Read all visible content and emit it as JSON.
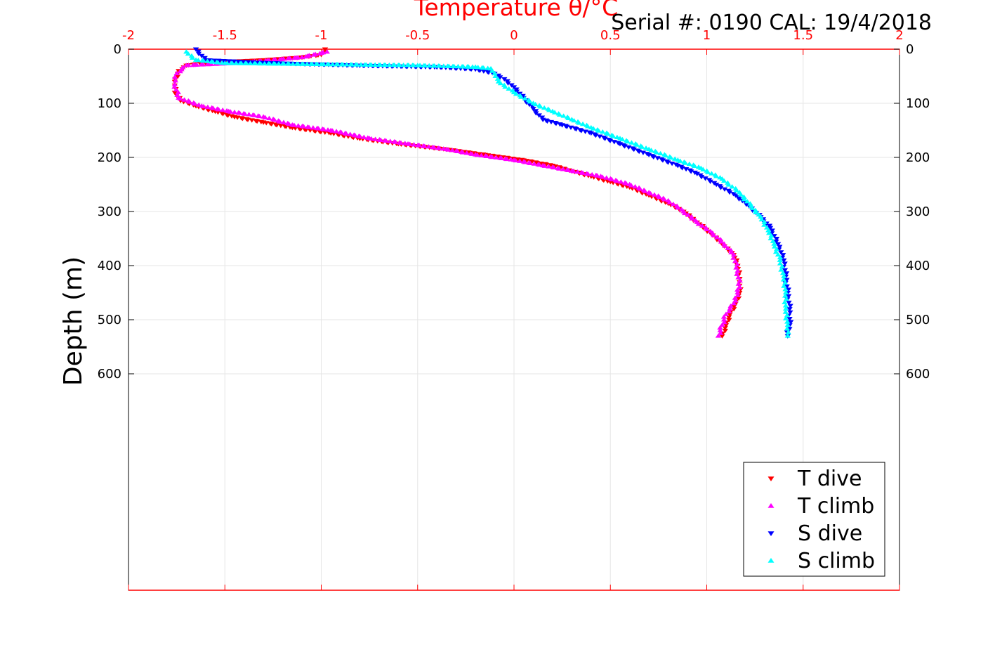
{
  "chart_data": {
    "type": "scatter",
    "title": "Temperature θ/°C",
    "annotation": "Serial #: 0190  CAL: 19/4/2018",
    "ylabel": "Depth (m)",
    "xlim": [
      -2,
      2
    ],
    "ylim": [
      0,
      1000
    ],
    "y_reversed": true,
    "x_ticks": [
      "-2",
      "-1.5",
      "-1",
      "-0.5",
      "0",
      "0.5",
      "1",
      "1.5",
      "2"
    ],
    "y_ticks": [
      "0",
      "100",
      "200",
      "300",
      "400",
      "500",
      "600"
    ],
    "grid": true,
    "legend_position": "bottom-right",
    "colors": {
      "axis_top": "#ff0000",
      "grid": "#e6e6e6"
    },
    "series": [
      {
        "name": "T dive",
        "marker": "triangle-down",
        "color": "#ff0000",
        "points": [
          [
            -0.98,
            0
          ],
          [
            -0.98,
            5
          ],
          [
            -1.0,
            10
          ],
          [
            -1.1,
            15
          ],
          [
            -1.3,
            20
          ],
          [
            -1.6,
            25
          ],
          [
            -1.7,
            30
          ],
          [
            -1.74,
            40
          ],
          [
            -1.76,
            60
          ],
          [
            -1.76,
            80
          ],
          [
            -1.73,
            95
          ],
          [
            -1.65,
            105
          ],
          [
            -1.55,
            115
          ],
          [
            -1.45,
            125
          ],
          [
            -1.3,
            135
          ],
          [
            -1.15,
            145
          ],
          [
            -0.95,
            155
          ],
          [
            -0.8,
            165
          ],
          [
            -0.6,
            175
          ],
          [
            -0.35,
            185
          ],
          [
            -0.15,
            195
          ],
          [
            0.05,
            205
          ],
          [
            0.2,
            215
          ],
          [
            0.3,
            225
          ],
          [
            0.4,
            235
          ],
          [
            0.5,
            245
          ],
          [
            0.6,
            255
          ],
          [
            0.7,
            270
          ],
          [
            0.8,
            285
          ],
          [
            0.88,
            300
          ],
          [
            0.95,
            320
          ],
          [
            1.02,
            340
          ],
          [
            1.08,
            360
          ],
          [
            1.14,
            380
          ],
          [
            1.16,
            400
          ],
          [
            1.17,
            430
          ],
          [
            1.17,
            450
          ],
          [
            1.15,
            470
          ],
          [
            1.12,
            490
          ],
          [
            1.1,
            510
          ],
          [
            1.08,
            530
          ]
        ]
      },
      {
        "name": "T climb",
        "marker": "triangle-up",
        "color": "#ff00ff",
        "points": [
          [
            -0.97,
            5
          ],
          [
            -1.1,
            15
          ],
          [
            -1.4,
            25
          ],
          [
            -1.7,
            30
          ],
          [
            -1.75,
            45
          ],
          [
            -1.76,
            65
          ],
          [
            -1.74,
            90
          ],
          [
            -1.62,
            105
          ],
          [
            -1.48,
            115
          ],
          [
            -1.3,
            125
          ],
          [
            -1.15,
            140
          ],
          [
            -0.95,
            150
          ],
          [
            -0.75,
            165
          ],
          [
            -0.55,
            175
          ],
          [
            -0.35,
            185
          ],
          [
            -0.2,
            195
          ],
          [
            0.0,
            205
          ],
          [
            0.15,
            215
          ],
          [
            0.3,
            225
          ],
          [
            0.45,
            235
          ],
          [
            0.6,
            250
          ],
          [
            0.7,
            265
          ],
          [
            0.8,
            280
          ],
          [
            0.88,
            300
          ],
          [
            0.95,
            320
          ],
          [
            1.03,
            340
          ],
          [
            1.09,
            360
          ],
          [
            1.14,
            380
          ],
          [
            1.16,
            410
          ],
          [
            1.17,
            440
          ],
          [
            1.14,
            470
          ],
          [
            1.1,
            490
          ],
          [
            1.08,
            510
          ],
          [
            1.06,
            530
          ]
        ]
      },
      {
        "name": "S dive",
        "marker": "triangle-down",
        "color": "#0000ff",
        "points": [
          [
            -1.65,
            0
          ],
          [
            -1.6,
            20
          ],
          [
            -1.3,
            25
          ],
          [
            -0.8,
            30
          ],
          [
            -0.4,
            33
          ],
          [
            -0.2,
            37
          ],
          [
            -0.1,
            45
          ],
          [
            -0.05,
            55
          ],
          [
            0.0,
            70
          ],
          [
            0.05,
            90
          ],
          [
            0.1,
            110
          ],
          [
            0.15,
            130
          ],
          [
            0.25,
            140
          ],
          [
            0.4,
            155
          ],
          [
            0.55,
            175
          ],
          [
            0.7,
            195
          ],
          [
            0.85,
            215
          ],
          [
            0.95,
            230
          ],
          [
            1.05,
            250
          ],
          [
            1.15,
            270
          ],
          [
            1.22,
            290
          ],
          [
            1.28,
            310
          ],
          [
            1.33,
            330
          ],
          [
            1.37,
            360
          ],
          [
            1.4,
            390
          ],
          [
            1.41,
            420
          ],
          [
            1.42,
            450
          ],
          [
            1.43,
            480
          ],
          [
            1.43,
            510
          ],
          [
            1.42,
            530
          ]
        ]
      },
      {
        "name": "S climb",
        "marker": "triangle-up",
        "color": "#00ffff",
        "points": [
          [
            -1.7,
            5
          ],
          [
            -1.65,
            20
          ],
          [
            -1.5,
            26
          ],
          [
            -1.0,
            28
          ],
          [
            -0.5,
            30
          ],
          [
            -0.2,
            33
          ],
          [
            -0.12,
            36
          ],
          [
            -0.1,
            45
          ],
          [
            -0.08,
            60
          ],
          [
            0.0,
            80
          ],
          [
            0.1,
            100
          ],
          [
            0.2,
            115
          ],
          [
            0.3,
            130
          ],
          [
            0.4,
            145
          ],
          [
            0.55,
            165
          ],
          [
            0.7,
            185
          ],
          [
            0.85,
            205
          ],
          [
            0.97,
            220
          ],
          [
            1.08,
            240
          ],
          [
            1.17,
            265
          ],
          [
            1.23,
            290
          ],
          [
            1.28,
            310
          ],
          [
            1.32,
            335
          ],
          [
            1.35,
            360
          ],
          [
            1.38,
            390
          ],
          [
            1.4,
            420
          ],
          [
            1.41,
            450
          ],
          [
            1.41,
            480
          ],
          [
            1.42,
            510
          ],
          [
            1.42,
            530
          ]
        ]
      }
    ]
  }
}
